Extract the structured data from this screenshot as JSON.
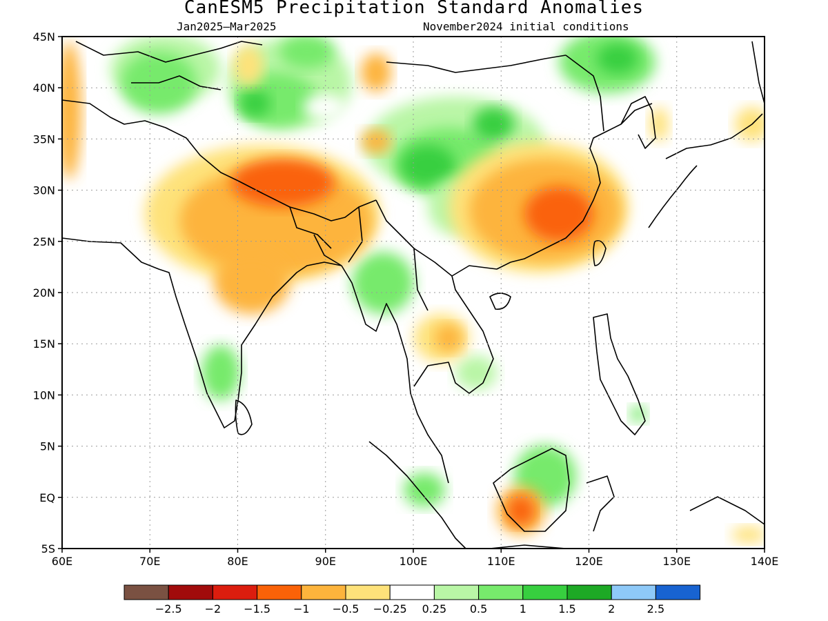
{
  "title": "CanESM5 Precipitation Standard Anomalies",
  "subtitle_period": "Jan2025–Mar2025",
  "subtitle_init": "November2024 initial conditions",
  "map": {
    "lon_range": [
      60,
      140
    ],
    "lat_range": [
      -5,
      45
    ],
    "lon_ticks": [
      {
        "value": 60,
        "label": "60E"
      },
      {
        "value": 70,
        "label": "70E"
      },
      {
        "value": 80,
        "label": "80E"
      },
      {
        "value": 90,
        "label": "90E"
      },
      {
        "value": 100,
        "label": "100E"
      },
      {
        "value": 110,
        "label": "110E"
      },
      {
        "value": 120,
        "label": "120E"
      },
      {
        "value": 130,
        "label": "130E"
      },
      {
        "value": 140,
        "label": "140E"
      }
    ],
    "lat_ticks": [
      {
        "value": -5,
        "label": "5S"
      },
      {
        "value": 0,
        "label": "EQ"
      },
      {
        "value": 5,
        "label": "5N"
      },
      {
        "value": 10,
        "label": "10N"
      },
      {
        "value": 15,
        "label": "15N"
      },
      {
        "value": 20,
        "label": "20N"
      },
      {
        "value": 25,
        "label": "25N"
      },
      {
        "value": 30,
        "label": "30N"
      },
      {
        "value": 35,
        "label": "35N"
      },
      {
        "value": 40,
        "label": "40N"
      },
      {
        "value": 45,
        "label": "45N"
      }
    ],
    "gridlines": "dotted"
  },
  "legend": {
    "colors": [
      "#7a5142",
      "#a10b0b",
      "#dc1d0e",
      "#fa6208",
      "#fdb43c",
      "#fee27a",
      "#ffffff",
      "#b9f6a6",
      "#77ea6c",
      "#37cf3f",
      "#1da925",
      "#8ec9f8",
      "#1863d1"
    ],
    "labels": [
      "−2.5",
      "−2",
      "−1.5",
      "−1",
      "−0.5",
      "−0.25",
      "0.25",
      "0.5",
      "1",
      "1.5",
      "2",
      "2.5"
    ]
  },
  "chart_data": {
    "type": "heatmap",
    "variable": "Precipitation standard anomaly",
    "period": "Jan2025–Mar2025",
    "initial_conditions": "November2024",
    "xlim": [
      60,
      140
    ],
    "ylim": [
      -5,
      45
    ],
    "levels": [
      -2.5,
      -2,
      -1.5,
      -1,
      -0.5,
      -0.25,
      0.25,
      0.5,
      1,
      1.5,
      2,
      2.5
    ],
    "regions": [
      {
        "lon": [
          78,
          84
        ],
        "lat": [
          36,
          45
        ],
        "value": 0.6
      },
      {
        "lon": [
          83,
          98
        ],
        "lat": [
          34,
          45
        ],
        "value": 0.8
      },
      {
        "lon": [
          84,
          89
        ],
        "lat": [
          36,
          40
        ],
        "value": 1.2
      },
      {
        "lon": [
          89,
          93
        ],
        "lat": [
          42,
          45
        ],
        "value": 1.1
      },
      {
        "lon": [
          95,
          113
        ],
        "lat": [
          26,
          38
        ],
        "value": 0.7
      },
      {
        "lon": [
          98,
          104
        ],
        "lat": [
          30,
          34
        ],
        "value": 1.3
      },
      {
        "lon": [
          109,
          112
        ],
        "lat": [
          34,
          37
        ],
        "value": 1.2
      },
      {
        "lon": [
          113,
          126
        ],
        "lat": [
          38,
          45
        ],
        "value": 0.8
      },
      {
        "lon": [
          119,
          123
        ],
        "lat": [
          41,
          44
        ],
        "value": 1.2
      },
      {
        "lon": [
          93,
          99
        ],
        "lat": [
          18,
          23
        ],
        "value": 0.9
      },
      {
        "lon": [
          77,
          81
        ],
        "lat": [
          10,
          15
        ],
        "value": 0.5
      },
      {
        "lon": [
          107,
          110
        ],
        "lat": [
          10,
          13
        ],
        "value": 0.5
      },
      {
        "lon": [
          110,
          118
        ],
        "lat": [
          -2,
          4
        ],
        "value": 0.5
      },
      {
        "lon": [
          79,
          93
        ],
        "lat": [
          18,
          30
        ],
        "value": -0.7
      },
      {
        "lon": [
          66,
          82
        ],
        "lat": [
          22,
          33
        ],
        "value": -0.4
      },
      {
        "lon": [
          82,
          93
        ],
        "lat": [
          28,
          34
        ],
        "value": -1.1
      },
      {
        "lon": [
          105,
          123
        ],
        "lat": [
          21,
          36
        ],
        "value": -0.8
      },
      {
        "lon": [
          114,
          121
        ],
        "lat": [
          26,
          32
        ],
        "value": -1.1
      },
      {
        "lon": [
          105,
          108
        ],
        "lat": [
          14,
          17
        ],
        "value": -0.5
      },
      {
        "lon": [
          110,
          115
        ],
        "lat": [
          -3,
          1
        ],
        "value": -0.8
      },
      {
        "lon": [
          111,
          114
        ],
        "lat": [
          -2,
          0
        ],
        "value": -1.1
      },
      {
        "lon": [
          135,
          140
        ],
        "lat": [
          34,
          38
        ],
        "value": -0.4
      }
    ]
  }
}
